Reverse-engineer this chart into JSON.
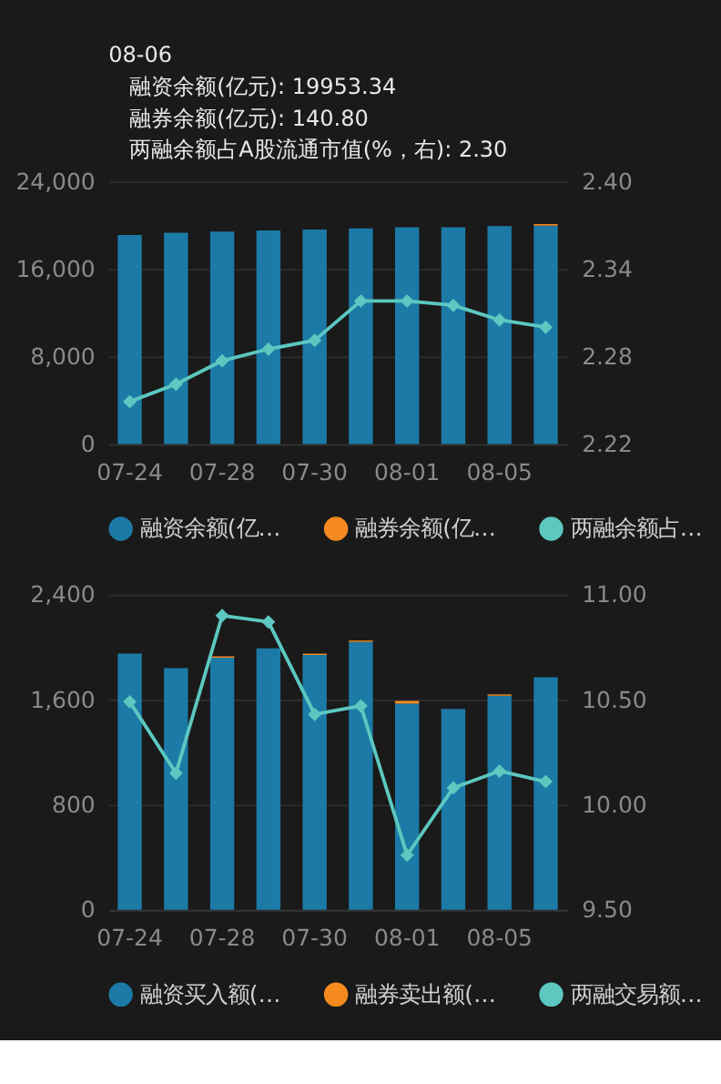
{
  "chart_data": [
    {
      "type": "bar",
      "stacked": true,
      "categories": [
        "07-24",
        null,
        "07-28",
        null,
        "07-30",
        null,
        "08-01",
        null,
        "08-05",
        null
      ],
      "series": [
        {
          "name": "融资余额(亿…",
          "color": "#1c7aa6",
          "values": [
            19100,
            19300,
            19400,
            19500,
            19600,
            19700,
            19800,
            19800,
            19900,
            19953.34
          ]
        },
        {
          "name": "融券余额(亿…",
          "color": "#f58b1f",
          "values": [
            null,
            null,
            null,
            null,
            null,
            null,
            null,
            null,
            null,
            140.8
          ]
        },
        {
          "name": "两融余额占…",
          "color": "#5cc8c0",
          "type": "line",
          "axis": "y2",
          "values": [
            2.249,
            2.261,
            2.277,
            2.285,
            2.291,
            2.318,
            2.318,
            2.315,
            2.305,
            2.3
          ]
        }
      ],
      "ylim": [
        0,
        24000
      ],
      "yticks": [
        0,
        {
          "value": 8000,
          "label": "8,000"
        },
        {
          "value": 16000,
          "label": "16,000"
        },
        {
          "value": 24000,
          "label": "24,000"
        }
      ],
      "y2lim": [
        2.22,
        2.4
      ],
      "y2ticks": [
        2.22,
        2.28,
        2.34,
        {
          "value": 2.4,
          "label": "2.40"
        }
      ],
      "grid": "y",
      "legend": "bottom",
      "marker": "diamond",
      "annotations": [
        "08-06",
        "融资余额(亿元): 19953.34",
        "融券余额(亿元): 140.80",
        "两融余额占A股流通市值(%，右): 2.30"
      ]
    },
    {
      "type": "bar",
      "stacked": true,
      "categories": [
        "07-24",
        null,
        "07-28",
        null,
        "07-30",
        null,
        "08-01",
        null,
        "08-05",
        null
      ],
      "series": [
        {
          "name": "融资买入额(…",
          "color": "#1c7aa6",
          "values": [
            1950,
            1840,
            1920,
            1990,
            1940,
            2040,
            1570,
            1530,
            1630,
            1770
          ]
        },
        {
          "name": "融券卖出额(…",
          "color": "#f58b1f",
          "values": [
            0,
            0,
            10,
            0,
            10,
            10,
            20,
            0,
            10,
            0
          ]
        },
        {
          "name": "两融交易额…",
          "color": "#5cc8c0",
          "type": "line",
          "axis": "y2",
          "values": [
            10.49,
            10.15,
            10.9,
            10.87,
            10.43,
            10.47,
            9.76,
            10.08,
            10.16,
            10.11
          ]
        }
      ],
      "ylim": [
        0,
        2400
      ],
      "yticks": [
        0,
        800,
        {
          "value": 1600,
          "label": "1,600"
        },
        {
          "value": 2400,
          "label": "2,400"
        }
      ],
      "y2lim": [
        9.5,
        11
      ],
      "y2ticks": [
        {
          "value": 9.5,
          "label": "9.50"
        },
        {
          "value": 10,
          "label": "10.00"
        },
        {
          "value": 10.5,
          "label": "10.50"
        },
        {
          "value": 11,
          "label": "11.00"
        }
      ],
      "grid": "y",
      "legend": "bottom",
      "marker": "diamond"
    }
  ]
}
